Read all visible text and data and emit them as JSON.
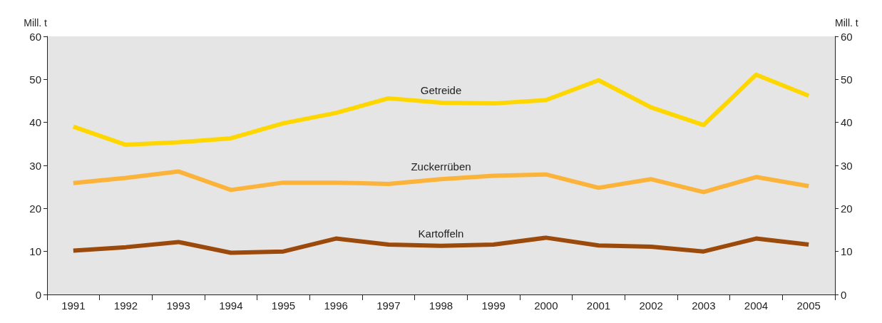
{
  "chart_data": {
    "type": "line",
    "ylabel": "Mill. t",
    "y2label": "Mill. t",
    "categories": [
      "1991",
      "1992",
      "1993",
      "1994",
      "1995",
      "1996",
      "1997",
      "1998",
      "1999",
      "2000",
      "2001",
      "2002",
      "2003",
      "2004",
      "2005"
    ],
    "series": [
      {
        "name": "Getreide",
        "color": "#ffd700",
        "values": [
          39.0,
          34.8,
          35.4,
          36.3,
          39.8,
          42.2,
          45.6,
          44.6,
          44.4,
          45.2,
          49.8,
          43.5,
          39.4,
          51.1,
          46.2
        ]
      },
      {
        "name": "Zuckerrüben",
        "color": "#fbb33a",
        "values": [
          25.9,
          27.1,
          28.6,
          24.3,
          26.0,
          26.0,
          25.7,
          26.8,
          27.6,
          27.9,
          24.8,
          26.8,
          23.8,
          27.3,
          25.2
        ]
      },
      {
        "name": "Kartoffeln",
        "color": "#9c4a0c",
        "values": [
          10.2,
          11.0,
          12.2,
          9.7,
          10.0,
          13.0,
          11.6,
          11.3,
          11.6,
          13.2,
          11.4,
          11.1,
          10.0,
          13.0,
          11.6
        ]
      }
    ],
    "ylim": [
      0,
      60
    ],
    "yticks": [
      0,
      10,
      20,
      30,
      40,
      50,
      60
    ],
    "y2lim": [
      0,
      60
    ],
    "y2ticks": [
      0,
      10,
      20,
      30,
      40,
      50,
      60
    ],
    "grid": false,
    "legend": false,
    "marker": "none",
    "line_style": "solid"
  }
}
